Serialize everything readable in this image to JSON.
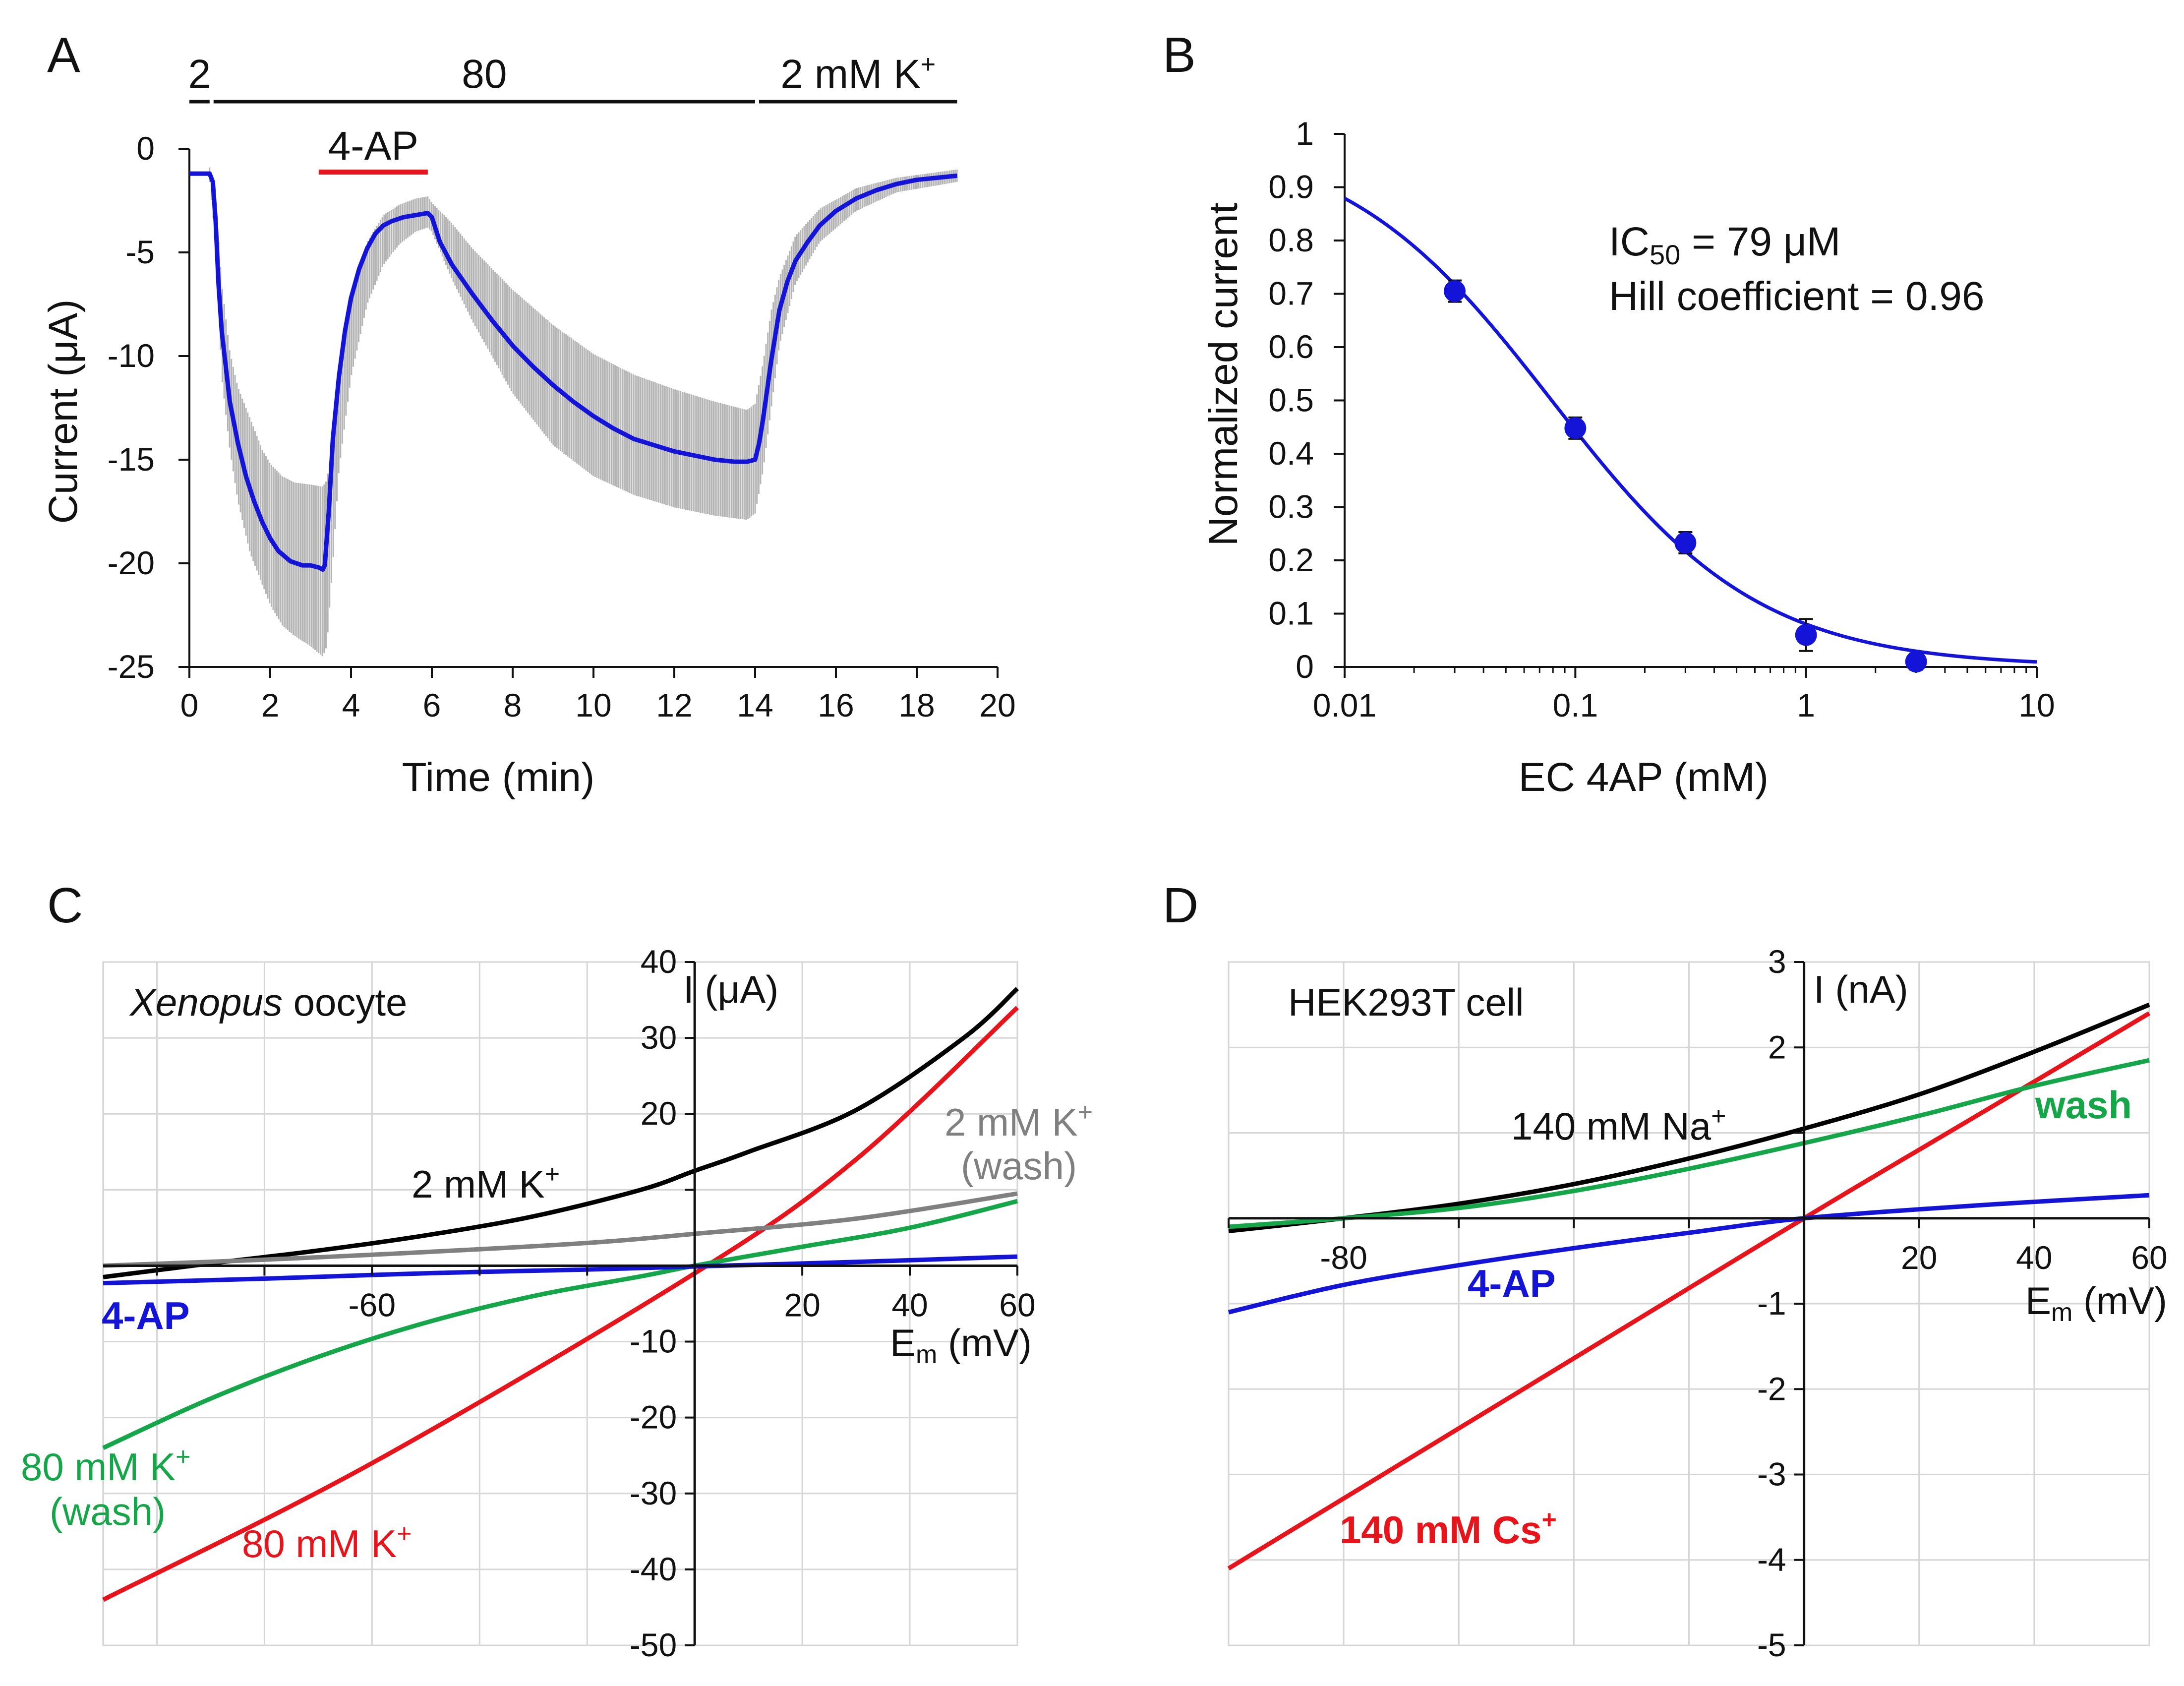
{
  "panels": {
    "A": {
      "letter": "A",
      "conditions": [
        {
          "label": "2",
          "from": 0,
          "to": 0.5
        },
        {
          "label": "80",
          "from": 0.5,
          "to": 14
        },
        {
          "label": "2 mM K",
          "sup": "+",
          "from": 14,
          "to": 19
        }
      ],
      "drug": {
        "label": "4-AP",
        "from": 3.2,
        "to": 5.9,
        "color": "#e8141b"
      }
    },
    "B": {
      "letter": "B",
      "ic50": {
        "prefix": "IC",
        "sub": "50",
        "suffix": " = 79 μM"
      },
      "hill_label": "Hill coefficient = 0.96"
    },
    "C": {
      "letter": "C",
      "cell_label": {
        "italic": "Xenopus",
        "rest": " oocyte"
      },
      "y_unit": "I (μA)",
      "x_unit": {
        "text": "E",
        "sub": "m",
        "rest": " (mV)"
      },
      "curve_labels": {
        "k2": {
          "text": "2 mM K",
          "sup": "+"
        },
        "k2wash_line1": {
          "text": "2 mM K",
          "sup": "+"
        },
        "k2wash_line2": "(wash)",
        "ap": "4-AP",
        "k80wash_line1": {
          "text": "80 mM K",
          "sup": "+"
        },
        "k80wash_line2": "(wash)",
        "k80": {
          "text": "80 mM K",
          "sup": "+"
        }
      }
    },
    "D": {
      "letter": "D",
      "cell_label": "HEK293T cell",
      "y_unit": "I (nA)",
      "x_unit": {
        "text": "E",
        "sub": "m",
        "rest": " (mV)"
      },
      "curve_labels": {
        "na": {
          "text": "140 mM Na",
          "sup": "+"
        },
        "wash": "wash",
        "ap": "4-AP",
        "cs": {
          "text": "140 mM Cs",
          "sup": "+"
        }
      }
    }
  },
  "chart_data": [
    {
      "panel": "A",
      "type": "line",
      "xlabel": "Time (min)",
      "ylabel": "Current (μA)",
      "xlim": [
        0,
        20
      ],
      "ylim": [
        -25,
        0
      ],
      "xticks": [
        0,
        2,
        4,
        6,
        8,
        10,
        12,
        14,
        16,
        18,
        20
      ],
      "yticks": [
        0,
        -5,
        -10,
        -15,
        -20,
        -25
      ],
      "series": [
        {
          "color": "#1414d9",
          "x": [
            0,
            0.5,
            0.58,
            0.65,
            0.72,
            0.8,
            0.9,
            1.0,
            1.2,
            1.4,
            1.6,
            1.8,
            2.0,
            2.2,
            2.5,
            2.8,
            3.0,
            3.2,
            3.3,
            3.35,
            3.45,
            3.55,
            3.7,
            3.85,
            4.0,
            4.2,
            4.4,
            4.6,
            4.8,
            5.0,
            5.3,
            5.6,
            5.9,
            6.0,
            6.2,
            6.5,
            7.0,
            7.5,
            8.0,
            8.5,
            9.0,
            9.5,
            10.0,
            10.5,
            11.0,
            11.5,
            12.0,
            12.5,
            13.0,
            13.5,
            13.8,
            14.0,
            14.1,
            14.2,
            14.3,
            14.4,
            14.5,
            14.6,
            14.8,
            15.0,
            15.3,
            15.6,
            16.0,
            16.5,
            17.0,
            17.5,
            18.0,
            18.5,
            19.0
          ],
          "y": [
            -1.2,
            -1.2,
            -1.6,
            -3.5,
            -6.5,
            -8.8,
            -10.5,
            -12.2,
            -14.2,
            -15.8,
            -17.0,
            -18.0,
            -18.8,
            -19.4,
            -19.9,
            -20.1,
            -20.1,
            -20.2,
            -20.3,
            -20.1,
            -17.5,
            -14.0,
            -11.0,
            -8.8,
            -7.2,
            -5.8,
            -4.8,
            -4.1,
            -3.7,
            -3.5,
            -3.3,
            -3.2,
            -3.1,
            -3.3,
            -4.5,
            -5.6,
            -7.0,
            -8.3,
            -9.5,
            -10.5,
            -11.4,
            -12.2,
            -12.9,
            -13.5,
            -14.0,
            -14.3,
            -14.6,
            -14.8,
            -15.0,
            -15.1,
            -15.1,
            -15.0,
            -14.2,
            -13.0,
            -11.6,
            -10.2,
            -9.0,
            -7.8,
            -6.4,
            -5.4,
            -4.5,
            -3.7,
            -3.0,
            -2.4,
            -2.0,
            -1.7,
            -1.5,
            -1.4,
            -1.3
          ]
        }
      ],
      "error_band": {
        "color": "#b4b4b4",
        "x": [
          0,
          0.5,
          0.65,
          0.8,
          1.0,
          1.2,
          1.5,
          1.8,
          2.0,
          2.3,
          2.6,
          3.0,
          3.3,
          3.4,
          3.55,
          3.7,
          4.0,
          4.4,
          4.8,
          5.2,
          5.6,
          5.9,
          6.0,
          6.5,
          7.0,
          8.0,
          9.0,
          10.0,
          11.0,
          12.0,
          13.0,
          13.8,
          14.0,
          14.2,
          14.4,
          14.6,
          15.0,
          15.6,
          16.5,
          17.5,
          19.0
        ],
        "lower": [
          -1.5,
          -1.6,
          -4.5,
          -11.0,
          -14.5,
          -17.0,
          -19.5,
          -21.0,
          -22.0,
          -23.0,
          -23.5,
          -24.0,
          -24.5,
          -24.0,
          -20.0,
          -15.5,
          -11.0,
          -7.5,
          -5.6,
          -4.6,
          -4.0,
          -3.8,
          -4.0,
          -6.3,
          -8.3,
          -11.8,
          -14.3,
          -15.8,
          -16.7,
          -17.3,
          -17.7,
          -17.9,
          -17.6,
          -15.5,
          -12.5,
          -9.5,
          -6.5,
          -4.5,
          -3.0,
          -2.1,
          -1.6
        ],
        "upper": [
          -0.9,
          -0.9,
          -2.5,
          -6.5,
          -9.8,
          -11.5,
          -13.0,
          -14.5,
          -15.2,
          -15.8,
          -16.1,
          -16.2,
          -16.3,
          -16.0,
          -14.0,
          -11.0,
          -7.0,
          -4.5,
          -3.2,
          -2.7,
          -2.4,
          -2.3,
          -2.6,
          -3.6,
          -4.8,
          -6.8,
          -8.5,
          -9.9,
          -10.9,
          -11.6,
          -12.2,
          -12.6,
          -12.3,
          -10.3,
          -7.8,
          -6.2,
          -4.2,
          -2.9,
          -1.9,
          -1.4,
          -1.0
        ]
      }
    },
    {
      "panel": "B",
      "type": "scatter",
      "xlabel": "EC 4AP (mM)",
      "ylabel": "Normalized current",
      "xscale": "log",
      "xlim": [
        0.01,
        10
      ],
      "ylim": [
        0,
        1
      ],
      "xticks": [
        0.01,
        0.1,
        1,
        10
      ],
      "xticklabels": [
        "0.01",
        "0.1",
        "1",
        "10"
      ],
      "yticks": [
        0,
        0.1,
        0.2,
        0.3,
        0.4,
        0.5,
        0.6,
        0.7,
        0.8,
        0.9,
        1
      ],
      "yticklabels": [
        "0",
        "0.1",
        "0.2",
        "0.3",
        "0.4",
        "0.5",
        "0.6",
        "0.7",
        "0.8",
        "0.9",
        "1"
      ],
      "series": [
        {
          "color": "#1414d9",
          "x": [
            0.03,
            0.1,
            0.3,
            1,
            3
          ],
          "y": [
            0.705,
            0.448,
            0.233,
            0.06,
            0.01
          ],
          "err": [
            0.02,
            0.02,
            0.02,
            0.03,
            0.015
          ]
        }
      ],
      "fit": {
        "ic50_mM": 0.079,
        "hill": 0.96,
        "x_range": [
          0.01,
          10
        ],
        "color": "#1414d9"
      }
    },
    {
      "panel": "C",
      "type": "line",
      "xlim": [
        -110,
        60
      ],
      "ylim": [
        -50,
        40
      ],
      "xticks": [
        -100,
        -80,
        -60,
        -40,
        -20,
        0,
        20,
        40,
        60
      ],
      "xticklabels_shown": [
        -60,
        20,
        40,
        60
      ],
      "yticks": [
        -50,
        -40,
        -30,
        -20,
        -10,
        0,
        10,
        20,
        30,
        40
      ],
      "yticklabels_shown": [
        -50,
        -40,
        -30,
        -20,
        -10,
        20,
        30,
        40
      ],
      "series": [
        {
          "key": "k2",
          "color": "#000000",
          "x": [
            -110,
            -90,
            -70,
            -50,
            -30,
            -10,
            0,
            10,
            30,
            50,
            60
          ],
          "y": [
            -1.5,
            0.3,
            2.0,
            4.0,
            6.5,
            10.0,
            12.5,
            15.0,
            20.5,
            30.0,
            36.5
          ]
        },
        {
          "key": "k80",
          "color": "#e8141b",
          "x": [
            -110,
            -60,
            0,
            30,
            60
          ],
          "y": [
            -44.0,
            -26.0,
            -1.0,
            14.0,
            34.0
          ]
        },
        {
          "key": "k2wash",
          "color": "#808080",
          "x": [
            -110,
            -80,
            -50,
            -20,
            0,
            30,
            60
          ],
          "y": [
            0.0,
            0.8,
            1.8,
            3.0,
            4.2,
            6.2,
            9.5
          ]
        },
        {
          "key": "k80wash",
          "color": "#16a64a",
          "x": [
            -110,
            -90,
            -70,
            -50,
            -30,
            -10,
            0,
            20,
            40,
            60
          ],
          "y": [
            -24.0,
            -17.5,
            -12.0,
            -7.5,
            -4.0,
            -1.4,
            0.0,
            2.5,
            5.0,
            8.5
          ]
        },
        {
          "key": "ap",
          "color": "#1414d9",
          "x": [
            -110,
            -80,
            -50,
            -20,
            0,
            30,
            60
          ],
          "y": [
            -2.3,
            -1.7,
            -1.0,
            -0.5,
            -0.1,
            0.5,
            1.2
          ]
        }
      ]
    },
    {
      "panel": "D",
      "type": "line",
      "xlim": [
        -100,
        60
      ],
      "ylim": [
        -5,
        3
      ],
      "xticks": [
        -100,
        -80,
        -60,
        -40,
        -20,
        0,
        20,
        40,
        60
      ],
      "xticklabels_shown": [
        -80,
        20,
        40,
        60
      ],
      "yticks": [
        -5,
        -4,
        -3,
        -2,
        -1,
        0,
        1,
        2,
        3
      ],
      "yticklabels_shown": [
        -5,
        -4,
        -3,
        -2,
        -1,
        2,
        3
      ],
      "series": [
        {
          "key": "na",
          "color": "#000000",
          "x": [
            -100,
            -80,
            -60,
            -40,
            -20,
            0,
            20,
            40,
            60
          ],
          "y": [
            -0.15,
            0.0,
            0.17,
            0.4,
            0.7,
            1.05,
            1.45,
            1.95,
            2.5
          ]
        },
        {
          "key": "cs",
          "color": "#e8141b",
          "x": [
            -100,
            -50,
            0,
            30,
            60
          ],
          "y": [
            -4.1,
            -2.05,
            0.0,
            1.2,
            2.4
          ]
        },
        {
          "key": "wash",
          "color": "#16a64a",
          "x": [
            -100,
            -80,
            -60,
            -40,
            -20,
            0,
            20,
            40,
            60
          ],
          "y": [
            -0.1,
            0.0,
            0.12,
            0.32,
            0.58,
            0.88,
            1.2,
            1.55,
            1.85
          ]
        },
        {
          "key": "ap",
          "color": "#1414d9",
          "x": [
            -100,
            -80,
            -60,
            -40,
            -20,
            0,
            30,
            60
          ],
          "y": [
            -1.1,
            -0.78,
            -0.55,
            -0.35,
            -0.17,
            0.0,
            0.15,
            0.27
          ]
        }
      ]
    }
  ]
}
